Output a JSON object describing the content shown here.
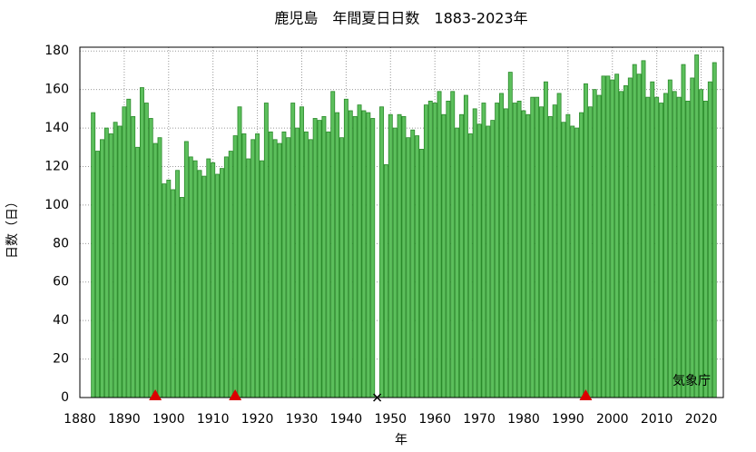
{
  "chart_data": {
    "type": "bar",
    "title": "鹿児島　年間夏日日数　1883-2023年",
    "ylabel": "日数（日）",
    "xlabel": "年",
    "annotation": "気象庁",
    "x": [
      1883,
      1884,
      1885,
      1886,
      1887,
      1888,
      1889,
      1890,
      1891,
      1892,
      1893,
      1894,
      1895,
      1896,
      1897,
      1898,
      1899,
      1900,
      1901,
      1902,
      1903,
      1904,
      1905,
      1906,
      1907,
      1908,
      1909,
      1910,
      1911,
      1912,
      1913,
      1914,
      1915,
      1916,
      1917,
      1918,
      1919,
      1920,
      1921,
      1922,
      1923,
      1924,
      1925,
      1926,
      1927,
      1928,
      1929,
      1930,
      1931,
      1932,
      1933,
      1934,
      1935,
      1936,
      1937,
      1938,
      1939,
      1940,
      1941,
      1942,
      1943,
      1944,
      1945,
      1946,
      1947,
      1948,
      1949,
      1950,
      1951,
      1952,
      1953,
      1954,
      1955,
      1956,
      1957,
      1958,
      1959,
      1960,
      1961,
      1962,
      1963,
      1964,
      1965,
      1966,
      1967,
      1968,
      1969,
      1970,
      1971,
      1972,
      1973,
      1974,
      1975,
      1976,
      1977,
      1978,
      1979,
      1980,
      1981,
      1982,
      1983,
      1984,
      1985,
      1986,
      1987,
      1988,
      1989,
      1990,
      1991,
      1992,
      1993,
      1994,
      1995,
      1996,
      1997,
      1998,
      1999,
      2000,
      2001,
      2002,
      2003,
      2004,
      2005,
      2006,
      2007,
      2008,
      2009,
      2010,
      2011,
      2012,
      2013,
      2014,
      2015,
      2016,
      2017,
      2018,
      2019,
      2020,
      2021,
      2022,
      2023
    ],
    "values": [
      148,
      128,
      134,
      140,
      137,
      143,
      141,
      151,
      155,
      146,
      130,
      161,
      153,
      145,
      132,
      135,
      111,
      113,
      108,
      118,
      104,
      133,
      125,
      123,
      118,
      115,
      124,
      122,
      116,
      119,
      125,
      128,
      136,
      151,
      137,
      124,
      134,
      137,
      123,
      153,
      138,
      134,
      132,
      138,
      135,
      153,
      140,
      151,
      138,
      134,
      145,
      144,
      146,
      138,
      159,
      148,
      135,
      155,
      149,
      146,
      152,
      149,
      148,
      145,
      null,
      151,
      121,
      147,
      140,
      147,
      146,
      135,
      139,
      136,
      129,
      152,
      154,
      153,
      159,
      147,
      154,
      159,
      140,
      147,
      157,
      137,
      150,
      142,
      153,
      141,
      144,
      153,
      158,
      150,
      169,
      153,
      154,
      149,
      147,
      156,
      156,
      151,
      164,
      146,
      152,
      158,
      143,
      147,
      141,
      140,
      148,
      163,
      151,
      160,
      157,
      167,
      167,
      165,
      168,
      159,
      162,
      166,
      173,
      168,
      175,
      156,
      164,
      156,
      153,
      158,
      165,
      159,
      156,
      173,
      154,
      166,
      178,
      160,
      154,
      164,
      174
    ],
    "color": "#5cbf5c",
    "edge_color": "#2a8a2a",
    "relocation_markers": [
      1897,
      1915,
      1994
    ],
    "relocation_color": "#dd0000",
    "missing_markers": [
      1947
    ],
    "xlim": [
      1880,
      2025
    ],
    "xticks": [
      1880,
      1890,
      1900,
      1910,
      1920,
      1930,
      1940,
      1950,
      1960,
      1970,
      1980,
      1990,
      2000,
      2010,
      2020
    ],
    "ylim": [
      0,
      182
    ],
    "yticks": [
      0,
      20,
      40,
      60,
      80,
      100,
      120,
      140,
      160,
      180
    ],
    "grid": true
  }
}
